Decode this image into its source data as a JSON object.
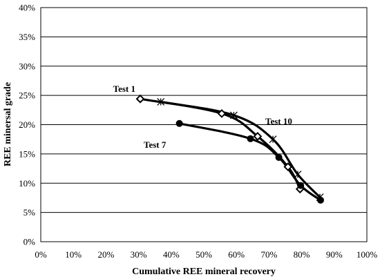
{
  "chart_data": {
    "type": "line",
    "title": "",
    "xlabel": "Cumulative REE mineral recovery",
    "ylabel": "REE minersal grade",
    "xlim": [
      0,
      100
    ],
    "ylim": [
      0,
      40
    ],
    "x_ticks": [
      "0%",
      "10%",
      "20%",
      "30%",
      "40%",
      "50%",
      "60%",
      "70%",
      "80%",
      "90%",
      "100%"
    ],
    "y_ticks": [
      "0%",
      "5%",
      "10%",
      "15%",
      "20%",
      "25%",
      "30%",
      "35%",
      "40%"
    ],
    "grid": "horizontal",
    "legend": "none",
    "series": [
      {
        "name": "Test 1",
        "marker": "diamond-open",
        "x": [
          30.5,
          55.5,
          66.5,
          75.8,
          79.5
        ],
        "y": [
          24.4,
          21.9,
          18.0,
          12.8,
          9.0
        ]
      },
      {
        "name": "Test 7",
        "marker": "circle-filled",
        "x": [
          42.5,
          64.3,
          73.0,
          79.7,
          85.8
        ],
        "y": [
          20.2,
          17.6,
          14.4,
          9.6,
          7.1
        ]
      },
      {
        "name": "Test 10",
        "marker": "asterisk",
        "x": [
          36.8,
          59.2,
          71.2,
          78.8,
          85.6
        ],
        "y": [
          23.9,
          21.6,
          17.5,
          11.5,
          7.6
        ]
      }
    ]
  }
}
